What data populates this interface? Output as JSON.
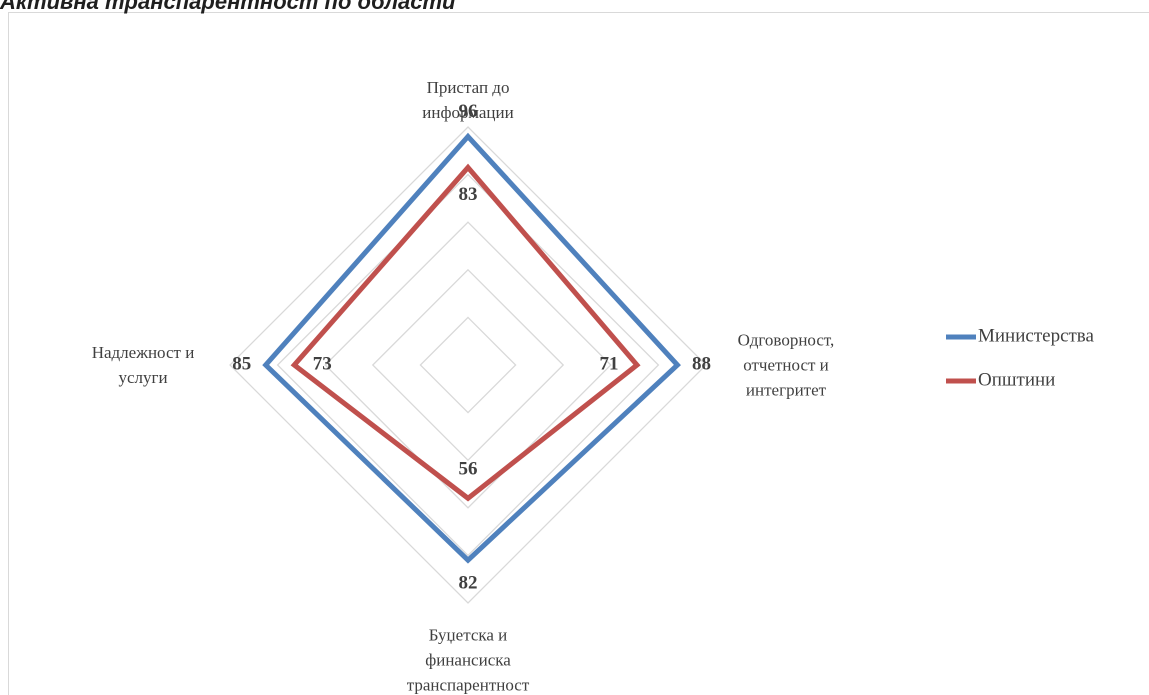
{
  "chart_data": {
    "type": "radar",
    "title": "Активна транспарентност по области",
    "categories": [
      "Пристап до информации",
      "Одговорност, отчетност и интегритет",
      "Буџетска и финансиска транспарентност",
      "Надлежност и услуги"
    ],
    "series": [
      {
        "name": "Министерства",
        "color": "#4f81bd",
        "values": [
          96,
          88,
          82,
          85
        ]
      },
      {
        "name": "Општини",
        "color": "#c0504d",
        "values": [
          83,
          71,
          56,
          73
        ]
      }
    ],
    "ylim": [
      0,
      100
    ],
    "yticks": [
      0,
      20,
      40,
      60,
      80,
      100
    ],
    "grid": true,
    "legend": "right"
  }
}
